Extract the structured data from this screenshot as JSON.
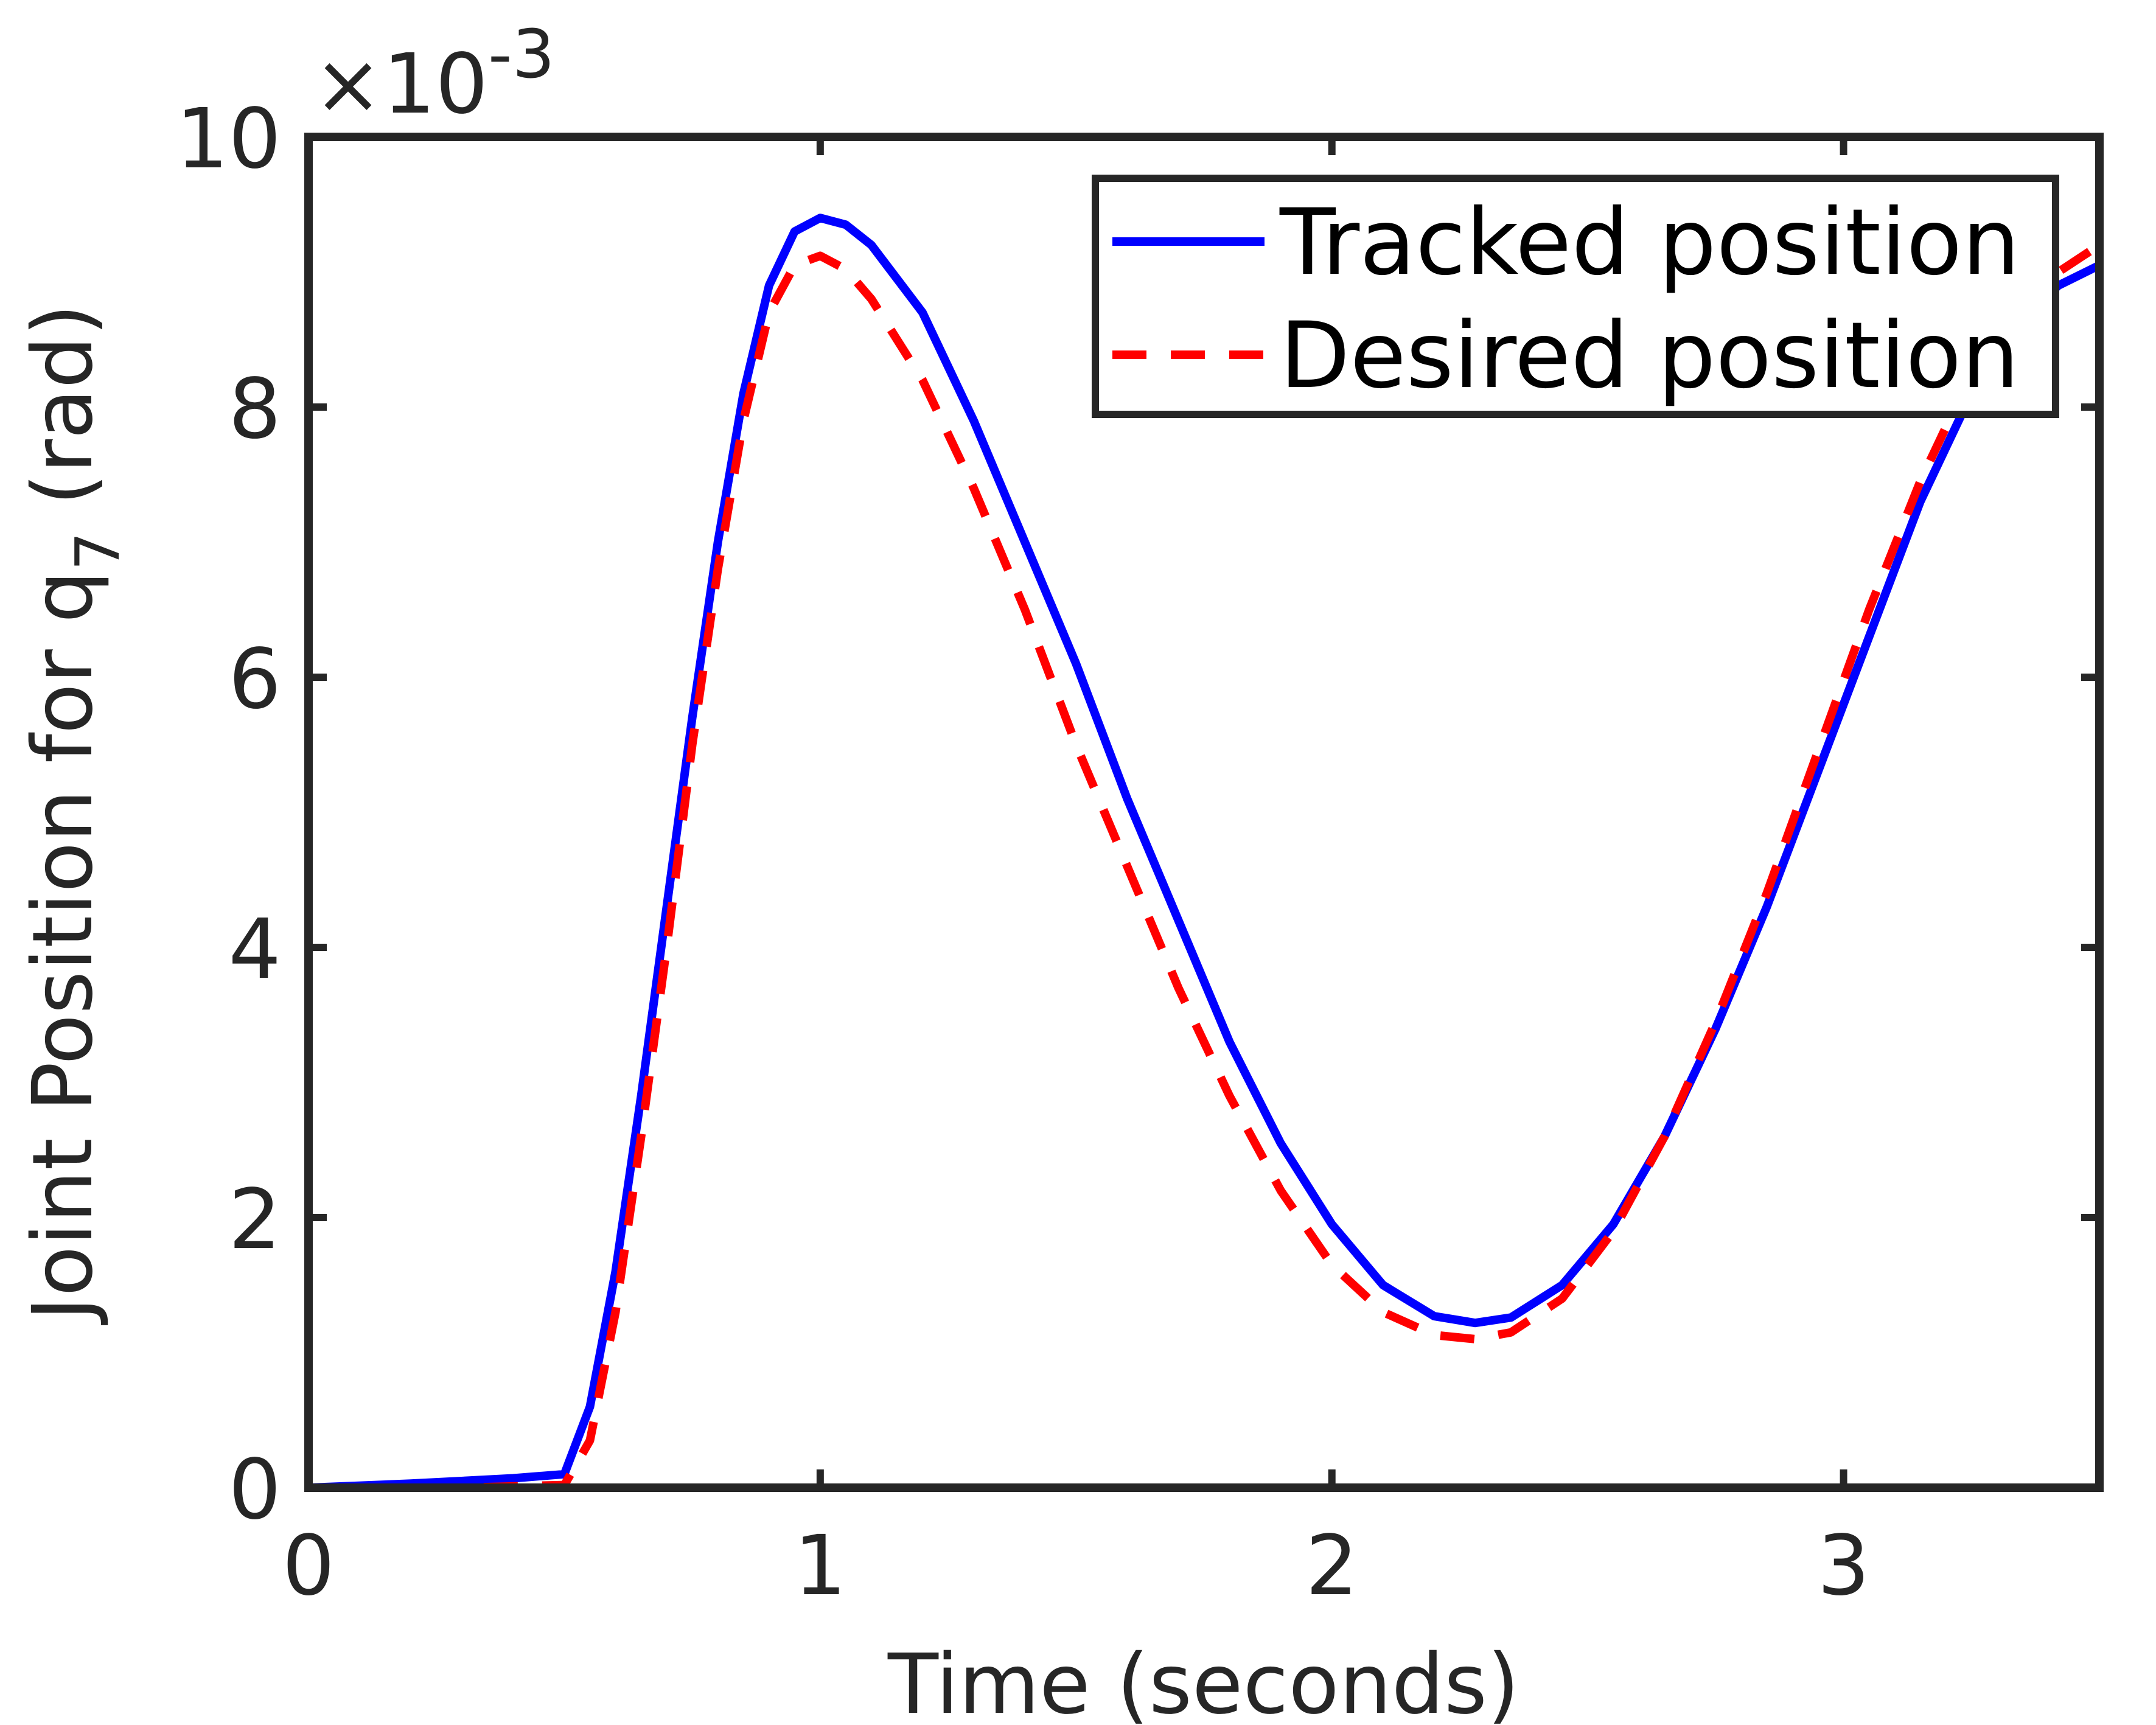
{
  "chart_data": {
    "type": "line",
    "xlabel": "Time (seconds)",
    "ylabel_main": "Joint Position for q",
    "ylabel_sub": "7",
    "ylabel_tail": " (rad)",
    "y_exponent_base": "×10",
    "y_exponent_power": "-3",
    "xlim": [
      0,
      3.5
    ],
    "ylim": [
      0,
      10
    ],
    "x_ticks": [
      0,
      1,
      2,
      3
    ],
    "x_tick_labels": [
      "0",
      "1",
      "2",
      "3"
    ],
    "y_ticks": [
      0,
      2,
      4,
      6,
      8,
      10
    ],
    "y_tick_labels": [
      "0",
      "2",
      "4",
      "6",
      "8",
      "10"
    ],
    "grid": false,
    "legend_position": "top-right",
    "colors": {
      "axes": "#262626",
      "tracked": "#0000ff",
      "desired": "#ff0000"
    },
    "series": [
      {
        "name": "Tracked position",
        "style": "solid",
        "color": "#0000ff",
        "points": [
          [
            0,
            0
          ],
          [
            0.2,
            0.03
          ],
          [
            0.4,
            0.07
          ],
          [
            0.5,
            0.1
          ],
          [
            0.55,
            0.6
          ],
          [
            0.6,
            1.6
          ],
          [
            0.65,
            2.9
          ],
          [
            0.7,
            4.3
          ],
          [
            0.75,
            5.7
          ],
          [
            0.8,
            7.0
          ],
          [
            0.85,
            8.1
          ],
          [
            0.9,
            8.9
          ],
          [
            0.95,
            9.3
          ],
          [
            1.0,
            9.4
          ],
          [
            1.05,
            9.35
          ],
          [
            1.1,
            9.2
          ],
          [
            1.2,
            8.7
          ],
          [
            1.3,
            7.9
          ],
          [
            1.4,
            7.0
          ],
          [
            1.5,
            6.1
          ],
          [
            1.6,
            5.1
          ],
          [
            1.7,
            4.2
          ],
          [
            1.8,
            3.3
          ],
          [
            1.9,
            2.55
          ],
          [
            2.0,
            1.95
          ],
          [
            2.1,
            1.5
          ],
          [
            2.2,
            1.27
          ],
          [
            2.28,
            1.22
          ],
          [
            2.35,
            1.26
          ],
          [
            2.45,
            1.5
          ],
          [
            2.55,
            1.95
          ],
          [
            2.65,
            2.6
          ],
          [
            2.75,
            3.4
          ],
          [
            2.85,
            4.3
          ],
          [
            2.95,
            5.3
          ],
          [
            3.05,
            6.3
          ],
          [
            3.15,
            7.3
          ],
          [
            3.25,
            8.1
          ],
          [
            3.35,
            8.65
          ],
          [
            3.42,
            8.9
          ],
          [
            3.5,
            9.05
          ]
        ]
      },
      {
        "name": "Desired position",
        "style": "dashed",
        "color": "#ff0000",
        "points": [
          [
            0,
            0
          ],
          [
            0.3,
            0.0
          ],
          [
            0.5,
            0.02
          ],
          [
            0.55,
            0.35
          ],
          [
            0.6,
            1.3
          ],
          [
            0.65,
            2.6
          ],
          [
            0.7,
            4.0
          ],
          [
            0.75,
            5.5
          ],
          [
            0.8,
            6.8
          ],
          [
            0.85,
            7.9
          ],
          [
            0.9,
            8.7
          ],
          [
            0.95,
            9.05
          ],
          [
            1.0,
            9.12
          ],
          [
            1.05,
            9.02
          ],
          [
            1.1,
            8.8
          ],
          [
            1.2,
            8.2
          ],
          [
            1.3,
            7.4
          ],
          [
            1.4,
            6.5
          ],
          [
            1.5,
            5.5
          ],
          [
            1.6,
            4.6
          ],
          [
            1.7,
            3.7
          ],
          [
            1.8,
            2.9
          ],
          [
            1.9,
            2.2
          ],
          [
            2.0,
            1.65
          ],
          [
            2.1,
            1.3
          ],
          [
            2.2,
            1.13
          ],
          [
            2.28,
            1.1
          ],
          [
            2.35,
            1.15
          ],
          [
            2.45,
            1.4
          ],
          [
            2.55,
            1.9
          ],
          [
            2.65,
            2.6
          ],
          [
            2.75,
            3.45
          ],
          [
            2.85,
            4.4
          ],
          [
            2.95,
            5.45
          ],
          [
            3.05,
            6.5
          ],
          [
            3.15,
            7.45
          ],
          [
            3.25,
            8.25
          ],
          [
            3.35,
            8.75
          ],
          [
            3.42,
            9.0
          ],
          [
            3.5,
            9.2
          ]
        ]
      }
    ]
  }
}
